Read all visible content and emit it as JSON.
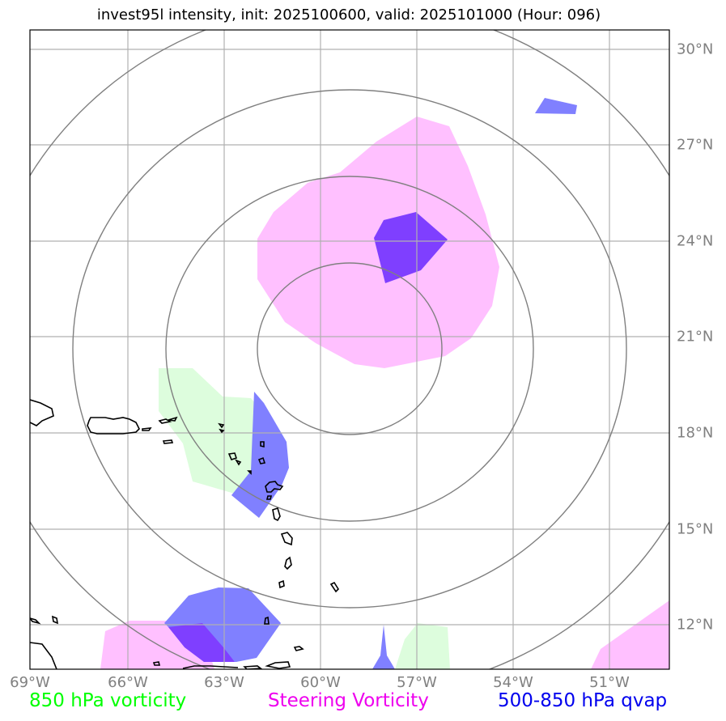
{
  "title": "invest95l intensity, init: 2025100600, valid: 2025101000 (Hour: 096)",
  "lon_labels": [
    "69°W",
    "66°W",
    "63°W",
    "60°W",
    "57°W",
    "54°W",
    "51°W"
  ],
  "lat_labels": [
    "30°N",
    "27°N",
    "24°N",
    "21°N",
    "18°N",
    "15°N",
    "12°N"
  ],
  "legend": [
    {
      "label": "850 hPa vorticity",
      "color": "#00ff00"
    },
    {
      "label": "Steering Vorticity",
      "color": "#ee00ee"
    },
    {
      "label": "500-850 hPa qvap",
      "color": "#0000ee"
    }
  ],
  "colors": {
    "vorticity_850": "#ddfddd",
    "steering_vorticity": "#ffc0ff",
    "qvap": "#8080ff",
    "qvap_overlap": "#7f3fff",
    "range_rings": "#808080",
    "gridlines": "#b0b0b0",
    "coastline": "#000000"
  }
}
